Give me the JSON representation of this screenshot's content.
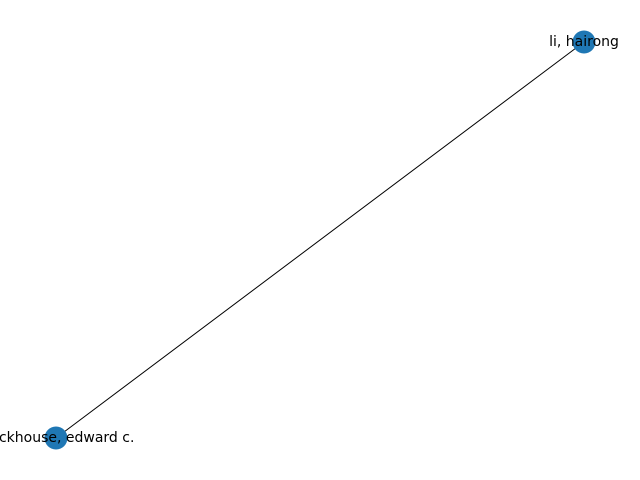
{
  "graph": {
    "node_color": "#1f77b4",
    "edge_color": "#000000",
    "nodes": [
      {
        "id": "n1",
        "label": "li, hairong"
      },
      {
        "id": "n2",
        "label": "stackhouse, edward c."
      }
    ],
    "edges": [
      {
        "source": "n1",
        "target": "n2"
      }
    ]
  }
}
